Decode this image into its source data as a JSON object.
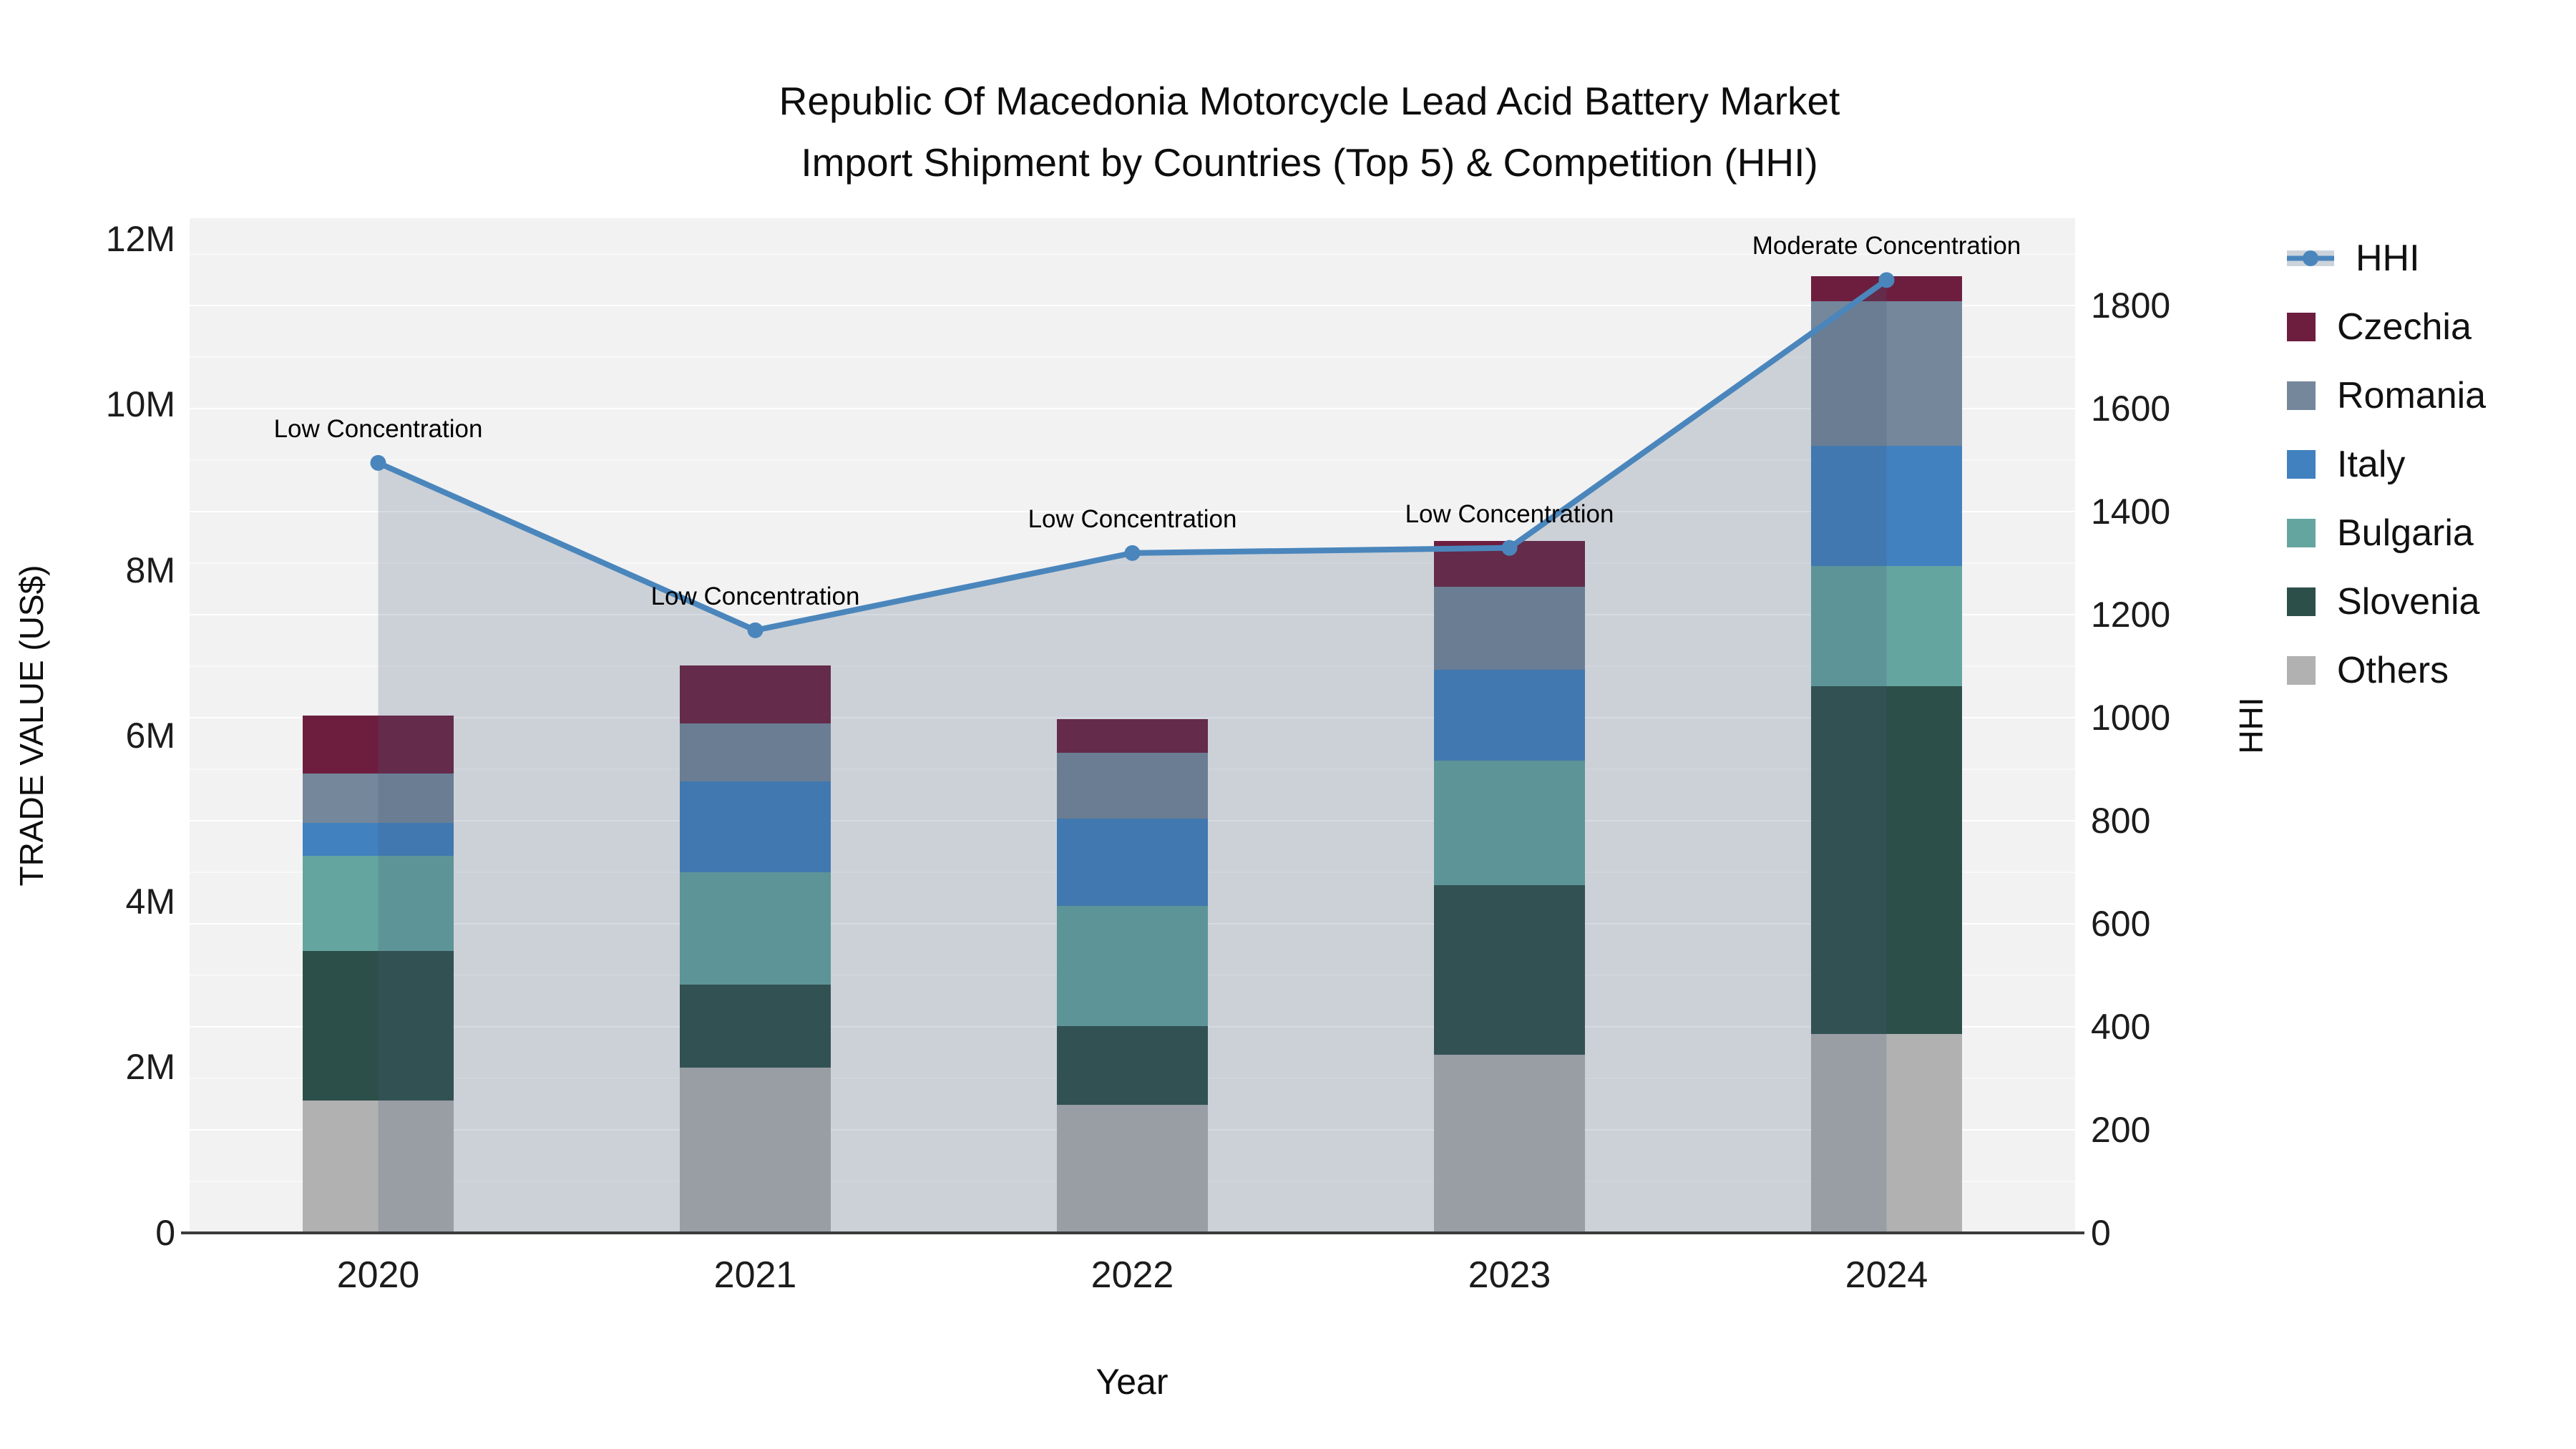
{
  "title": {
    "line1": "Republic Of Macedonia Motorcycle Lead Acid Battery Market",
    "line2": "Import Shipment by Countries (Top 5) & Competition (HHI)"
  },
  "axes": {
    "y_left": {
      "title": "TRADE VALUE (US$)",
      "tick_labels": [
        "0",
        "2M",
        "4M",
        "6M",
        "8M",
        "10M",
        "12M"
      ],
      "tick_values_musd": [
        0,
        2,
        4,
        6,
        8,
        10,
        12
      ],
      "max_musd": 12.25
    },
    "y_right": {
      "title": "HHI",
      "tick_values": [
        0,
        200,
        400,
        600,
        800,
        1000,
        1200,
        1400,
        1600,
        1800
      ],
      "max": 1970
    },
    "x": {
      "title": "Year"
    }
  },
  "legend": {
    "items": [
      {
        "label": "HHI",
        "type": "line",
        "color": "#4a86bc"
      },
      {
        "label": "Czechia",
        "type": "swatch",
        "color": "#6d1e3f"
      },
      {
        "label": "Romania",
        "type": "swatch",
        "color": "#75879b"
      },
      {
        "label": "Italy",
        "type": "swatch",
        "color": "#4181bf"
      },
      {
        "label": "Bulgaria",
        "type": "swatch",
        "color": "#65a5a0"
      },
      {
        "label": "Slovenia",
        "type": "swatch",
        "color": "#2d4f4a"
      },
      {
        "label": "Others",
        "type": "swatch",
        "color": "#b1b1b1"
      }
    ]
  },
  "colors": {
    "plot_background": "#f2f2f3",
    "figure_background": "#ffffff",
    "hhi_line": "#4a86bc",
    "hhi_area_fill": "rgba(70,90,120,0.22)",
    "axis_line": "#3b3b3b"
  },
  "chart_data": {
    "type": "bar-line-combo",
    "bar_mode": "stacked",
    "bar_unit": "million US$ (left axis, TRADE VALUE)",
    "categories": [
      "2020",
      "2021",
      "2022",
      "2023",
      "2024"
    ],
    "stack_order_bottom_to_top": [
      "Others",
      "Slovenia",
      "Bulgaria",
      "Italy",
      "Romania",
      "Czechia"
    ],
    "series": [
      {
        "name": "Czechia",
        "color": "#6d1e3f",
        "values_musd": [
          0.7,
          0.7,
          0.4,
          0.55,
          0.3
        ]
      },
      {
        "name": "Romania",
        "color": "#75879b",
        "values_musd": [
          0.6,
          0.7,
          0.8,
          1.0,
          1.75
        ]
      },
      {
        "name": "Italy",
        "color": "#4181bf",
        "values_musd": [
          0.4,
          1.1,
          1.05,
          1.1,
          1.45
        ]
      },
      {
        "name": "Bulgaria",
        "color": "#65a5a0",
        "values_musd": [
          1.15,
          1.35,
          1.45,
          1.5,
          1.45
        ]
      },
      {
        "name": "Slovenia",
        "color": "#2d4f4a",
        "values_musd": [
          1.8,
          1.0,
          0.95,
          2.05,
          4.2
        ]
      },
      {
        "name": "Others",
        "color": "#b1b1b1",
        "values_musd": [
          1.6,
          2.0,
          1.55,
          2.15,
          2.4
        ]
      }
    ],
    "bar_totals_musd": [
      6.25,
      6.85,
      6.2,
      8.35,
      11.55
    ],
    "line_series": {
      "name": "HHI",
      "axis": "right",
      "color": "#4a86bc",
      "area_fill": "rgba(70,90,120,0.22)",
      "values": [
        1495,
        1170,
        1320,
        1330,
        1850
      ]
    },
    "annotations": [
      {
        "year": "2020",
        "text": "Low Concentration"
      },
      {
        "year": "2021",
        "text": "Low Concentration"
      },
      {
        "year": "2022",
        "text": "Low Concentration"
      },
      {
        "year": "2023",
        "text": "Low Concentration"
      },
      {
        "year": "2024",
        "text": "Moderate Concentration"
      }
    ],
    "layout_hints": {
      "grid": "horizontal, every 100 HHI units",
      "legend_position": "right"
    }
  }
}
